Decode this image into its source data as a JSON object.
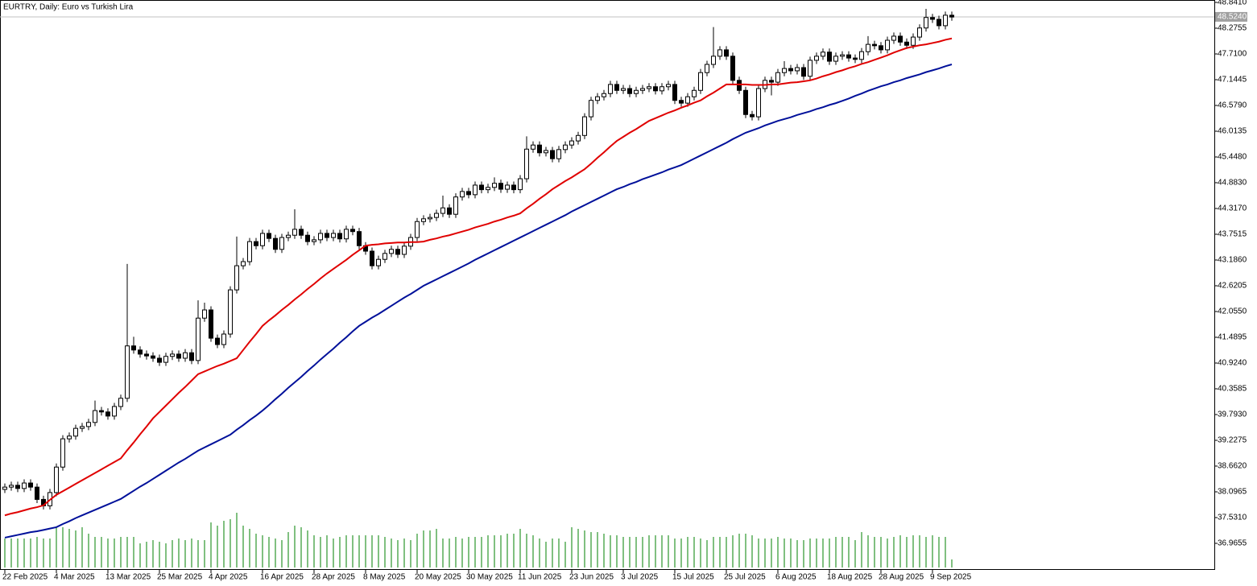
{
  "chart_data": {
    "type": "candlestick",
    "title": "EURTRY, Daily:  Euro vs Turkish Lira",
    "categories": [
      "22 Feb 2025",
      null,
      null,
      null,
      null,
      null,
      null,
      null,
      "4 Mar 2025",
      null,
      null,
      null,
      null,
      null,
      null,
      null,
      "13 Mar 2025",
      null,
      null,
      null,
      null,
      null,
      null,
      null,
      "25 Mar 2025",
      null,
      null,
      null,
      null,
      null,
      null,
      null,
      "4 Apr 2025",
      null,
      null,
      null,
      null,
      null,
      null,
      null,
      "16 Apr 2025",
      null,
      null,
      null,
      null,
      null,
      null,
      null,
      "28 Apr 2025",
      null,
      null,
      null,
      null,
      null,
      null,
      null,
      "8 May 2025",
      null,
      null,
      null,
      null,
      null,
      null,
      null,
      "20 May 2025",
      null,
      null,
      null,
      null,
      null,
      null,
      null,
      "30 May 2025",
      null,
      null,
      null,
      null,
      null,
      null,
      null,
      "11 Jun 2025",
      null,
      null,
      null,
      null,
      null,
      null,
      null,
      "23 Jun 2025",
      null,
      null,
      null,
      null,
      null,
      null,
      null,
      "3 Jul 2025",
      null,
      null,
      null,
      null,
      null,
      null,
      null,
      "15 Jul 2025",
      null,
      null,
      null,
      null,
      null,
      null,
      null,
      "25 Jul 2025",
      null,
      null,
      null,
      null,
      null,
      null,
      null,
      "6 Aug 2025",
      null,
      null,
      null,
      null,
      null,
      null,
      null,
      "18 Aug 2025",
      null,
      null,
      null,
      null,
      null,
      null,
      null,
      "28 Aug 2025",
      null,
      null,
      null,
      null,
      null,
      null,
      null,
      "9 Sep 2025",
      null,
      null,
      null
    ],
    "open": [
      38.15,
      38.2,
      38.24,
      38.17,
      38.29,
      38.2,
      37.93,
      37.79,
      38.08,
      38.64,
      39.26,
      39.32,
      39.49,
      39.53,
      39.62,
      39.88,
      39.85,
      39.76,
      39.97,
      40.15,
      41.3,
      41.21,
      41.12,
      41.08,
      41.03,
      40.94,
      41.07,
      41.12,
      41.03,
      41.15,
      40.98,
      41.91,
      42.09,
      41.47,
      41.33,
      41.56,
      42.53,
      43.06,
      43.15,
      43.59,
      43.5,
      43.77,
      43.66,
      43.42,
      43.68,
      43.73,
      43.86,
      43.73,
      43.59,
      43.63,
      43.77,
      43.68,
      43.77,
      43.65,
      43.86,
      43.81,
      43.5,
      43.38,
      43.06,
      43.2,
      43.33,
      43.42,
      43.31,
      43.49,
      43.68,
      44.03,
      44.09,
      44.12,
      44.21,
      44.33,
      44.19,
      44.57,
      44.69,
      44.62,
      44.83,
      44.73,
      44.78,
      44.87,
      44.74,
      44.83,
      44.73,
      44.97,
      45.62,
      45.71,
      45.54,
      45.59,
      45.41,
      45.61,
      45.71,
      45.8,
      45.92,
      46.33,
      46.69,
      46.77,
      46.84,
      47.04,
      46.91,
      46.95,
      46.84,
      46.91,
      46.95,
      46.99,
      46.9,
      46.99,
      47.04,
      46.69,
      46.63,
      46.77,
      46.91,
      47.3,
      47.48,
      47.66,
      47.8,
      47.66,
      47.13,
      46.91,
      46.38,
      46.33,
      46.95,
      47.13,
      47.09,
      47.3,
      47.39,
      47.34,
      47.41,
      47.22,
      47.57,
      47.66,
      47.75,
      47.55,
      47.66,
      47.69,
      47.62,
      47.59,
      47.76,
      47.92,
      47.89,
      47.8,
      48.01,
      48.1,
      47.97,
      47.9,
      48.08,
      48.28,
      48.51,
      48.47,
      48.33,
      48.56
    ],
    "high": [
      38.28,
      38.32,
      38.32,
      38.37,
      38.37,
      38.28,
      38.01,
      38.16,
      38.72,
      39.34,
      39.4,
      39.57,
      39.61,
      39.7,
      40.1,
      39.96,
      39.93,
      40.05,
      40.23,
      43.1,
      41.5,
      41.29,
      41.2,
      41.16,
      41.11,
      41.15,
      41.2,
      41.2,
      41.23,
      41.23,
      42.3,
      42.25,
      42.17,
      41.55,
      41.64,
      42.61,
      43.7,
      43.23,
      43.67,
      43.67,
      43.85,
      43.85,
      43.74,
      43.76,
      43.81,
      44.3,
      43.94,
      43.81,
      43.71,
      43.85,
      43.85,
      43.85,
      43.85,
      43.94,
      43.94,
      43.89,
      43.58,
      43.46,
      43.28,
      43.41,
      43.5,
      43.5,
      43.57,
      43.76,
      44.11,
      44.17,
      44.2,
      44.29,
      44.6,
      44.41,
      44.65,
      44.77,
      44.77,
      44.91,
      44.91,
      44.86,
      45.0,
      44.95,
      44.91,
      44.91,
      45.05,
      45.9,
      45.79,
      45.79,
      45.67,
      45.67,
      45.69,
      45.79,
      45.88,
      46.0,
      46.41,
      46.77,
      46.85,
      46.92,
      47.12,
      47.12,
      47.03,
      47.03,
      46.99,
      47.03,
      47.07,
      47.07,
      47.07,
      47.12,
      47.12,
      46.77,
      46.85,
      46.99,
      47.38,
      47.56,
      48.3,
      47.88,
      47.88,
      47.74,
      47.21,
      46.99,
      46.46,
      47.03,
      47.21,
      47.21,
      47.38,
      47.55,
      47.47,
      47.49,
      47.49,
      47.65,
      47.74,
      47.83,
      47.83,
      47.74,
      47.77,
      47.77,
      47.7,
      47.84,
      48.1,
      48.0,
      47.97,
      48.09,
      48.18,
      48.18,
      48.05,
      48.16,
      48.36,
      48.7,
      48.59,
      48.55,
      48.64,
      48.64
    ],
    "low": [
      38.07,
      38.12,
      38.09,
      38.09,
      38.12,
      37.85,
      37.71,
      37.71,
      38.0,
      38.56,
      39.18,
      39.24,
      39.41,
      39.45,
      39.54,
      39.77,
      39.68,
      39.68,
      39.89,
      40.07,
      41.13,
      41.04,
      41.0,
      40.95,
      40.86,
      40.86,
      40.99,
      40.95,
      40.95,
      40.9,
      40.9,
      41.83,
      41.39,
      41.25,
      41.25,
      41.48,
      42.45,
      42.98,
      43.07,
      43.42,
      43.42,
      43.58,
      43.34,
      43.34,
      43.6,
      43.65,
      43.65,
      43.51,
      43.51,
      43.55,
      43.6,
      43.6,
      43.57,
      43.57,
      43.73,
      43.42,
      43.3,
      42.98,
      42.98,
      43.12,
      43.25,
      43.23,
      43.23,
      43.41,
      43.6,
      43.95,
      44.01,
      44.04,
      44.13,
      44.11,
      44.11,
      44.49,
      44.54,
      44.54,
      44.65,
      44.65,
      44.7,
      44.66,
      44.66,
      44.65,
      44.65,
      44.89,
      45.54,
      45.46,
      45.46,
      45.33,
      45.33,
      45.53,
      45.63,
      45.72,
      45.84,
      46.25,
      46.61,
      46.69,
      46.76,
      46.83,
      46.83,
      46.76,
      46.76,
      46.83,
      46.87,
      46.82,
      46.82,
      46.91,
      46.61,
      46.55,
      46.55,
      46.69,
      46.83,
      47.22,
      47.4,
      47.58,
      47.58,
      47.05,
      46.83,
      46.3,
      46.25,
      46.25,
      46.87,
      46.8,
      47.01,
      47.22,
      47.26,
      47.26,
      47.14,
      47.14,
      47.49,
      47.58,
      47.47,
      47.47,
      47.58,
      47.54,
      47.51,
      47.51,
      47.68,
      47.81,
      47.72,
      47.72,
      47.93,
      47.89,
      47.82,
      47.82,
      48.0,
      48.2,
      48.39,
      48.25,
      48.25,
      48.44
    ],
    "close": [
      38.2,
      38.24,
      38.17,
      38.29,
      38.2,
      37.93,
      37.79,
      38.08,
      38.64,
      39.26,
      39.32,
      39.49,
      39.53,
      39.62,
      39.88,
      39.85,
      39.76,
      39.97,
      40.15,
      41.3,
      41.21,
      41.12,
      41.08,
      41.03,
      40.94,
      41.07,
      41.12,
      41.03,
      41.15,
      40.98,
      41.91,
      42.09,
      41.47,
      41.33,
      41.56,
      42.53,
      43.06,
      43.15,
      43.59,
      43.5,
      43.77,
      43.66,
      43.42,
      43.68,
      43.73,
      43.86,
      43.73,
      43.59,
      43.63,
      43.77,
      43.68,
      43.77,
      43.65,
      43.86,
      43.81,
      43.5,
      43.38,
      43.06,
      43.2,
      43.33,
      43.42,
      43.31,
      43.49,
      43.68,
      44.03,
      44.09,
      44.12,
      44.21,
      44.33,
      44.19,
      44.57,
      44.69,
      44.62,
      44.83,
      44.73,
      44.78,
      44.87,
      44.74,
      44.83,
      44.73,
      44.97,
      45.62,
      45.71,
      45.54,
      45.59,
      45.41,
      45.61,
      45.71,
      45.8,
      45.92,
      46.33,
      46.69,
      46.77,
      46.84,
      47.04,
      46.91,
      46.95,
      46.84,
      46.91,
      46.95,
      46.99,
      46.9,
      46.99,
      47.04,
      46.69,
      46.63,
      46.77,
      46.91,
      47.3,
      47.48,
      47.66,
      47.8,
      47.66,
      47.13,
      46.91,
      46.38,
      46.33,
      46.95,
      47.13,
      47.09,
      47.3,
      47.39,
      47.34,
      47.41,
      47.22,
      47.57,
      47.66,
      47.75,
      47.55,
      47.66,
      47.69,
      47.62,
      47.59,
      47.76,
      47.92,
      47.89,
      47.8,
      48.01,
      48.1,
      47.97,
      47.9,
      48.08,
      48.28,
      48.51,
      48.47,
      48.33,
      48.56,
      48.52
    ],
    "series": [
      {
        "color": "#e00000",
        "values": [
          37.58,
          37.62,
          37.65,
          37.69,
          37.73,
          37.76,
          37.8,
          37.92,
          38.03,
          38.11,
          38.19,
          38.27,
          38.35,
          38.43,
          38.51,
          38.59,
          38.67,
          38.75,
          38.83,
          39.01,
          39.18,
          39.36,
          39.53,
          39.71,
          39.85,
          39.99,
          40.13,
          40.27,
          40.4,
          40.54,
          40.68,
          40.74,
          40.8,
          40.86,
          40.91,
          40.97,
          41.03,
          41.21,
          41.39,
          41.56,
          41.74,
          41.86,
          41.97,
          42.09,
          42.2,
          42.32,
          42.43,
          42.55,
          42.66,
          42.78,
          42.89,
          42.99,
          43.09,
          43.19,
          43.3,
          43.4,
          43.5,
          43.52,
          43.53,
          43.55,
          43.56,
          43.57,
          43.57,
          43.58,
          43.58,
          43.59,
          43.63,
          43.66,
          43.7,
          43.73,
          43.77,
          43.81,
          43.85,
          43.9,
          43.94,
          43.98,
          44.03,
          44.07,
          44.12,
          44.16,
          44.21,
          44.32,
          44.42,
          44.53,
          44.63,
          44.74,
          44.83,
          44.92,
          45.0,
          45.09,
          45.18,
          45.3,
          45.43,
          45.55,
          45.68,
          45.8,
          45.89,
          45.98,
          46.06,
          46.15,
          46.24,
          46.3,
          46.36,
          46.42,
          46.47,
          46.53,
          46.58,
          46.64,
          46.69,
          46.78,
          46.86,
          46.95,
          47.04,
          47.04,
          47.04,
          47.04,
          47.03,
          47.03,
          47.03,
          47.04,
          47.04,
          47.06,
          47.08,
          47.09,
          47.11,
          47.13,
          47.17,
          47.22,
          47.26,
          47.31,
          47.35,
          47.4,
          47.44,
          47.49,
          47.53,
          47.58,
          47.63,
          47.68,
          47.74,
          47.79,
          47.84,
          47.87,
          47.9,
          47.92,
          47.95,
          47.98,
          48.02,
          48.05
        ]
      },
      {
        "color": "#00109a",
        "values": [
          37.09,
          37.12,
          37.15,
          37.18,
          37.21,
          37.23,
          37.26,
          37.29,
          37.32,
          37.39,
          37.45,
          37.52,
          37.58,
          37.64,
          37.7,
          37.76,
          37.82,
          37.88,
          37.94,
          38.03,
          38.12,
          38.21,
          38.29,
          38.38,
          38.47,
          38.56,
          38.65,
          38.74,
          38.82,
          38.91,
          39.0,
          39.07,
          39.14,
          39.21,
          39.28,
          39.35,
          39.46,
          39.56,
          39.67,
          39.77,
          39.88,
          40.0,
          40.13,
          40.25,
          40.38,
          40.5,
          40.62,
          40.75,
          40.87,
          41.0,
          41.12,
          41.24,
          41.37,
          41.49,
          41.62,
          41.74,
          41.83,
          41.92,
          42.0,
          42.09,
          42.18,
          42.27,
          42.36,
          42.44,
          42.53,
          42.62,
          42.69,
          42.76,
          42.83,
          42.9,
          42.97,
          43.04,
          43.11,
          43.19,
          43.26,
          43.33,
          43.4,
          43.47,
          43.54,
          43.61,
          43.68,
          43.75,
          43.82,
          43.89,
          43.96,
          44.03,
          44.1,
          44.17,
          44.25,
          44.32,
          44.39,
          44.46,
          44.53,
          44.6,
          44.67,
          44.74,
          44.79,
          44.85,
          44.9,
          44.96,
          45.01,
          45.06,
          45.11,
          45.17,
          45.22,
          45.27,
          45.34,
          45.41,
          45.48,
          45.55,
          45.62,
          45.69,
          45.76,
          45.84,
          45.91,
          45.98,
          46.03,
          46.08,
          46.14,
          46.19,
          46.24,
          46.28,
          46.32,
          46.37,
          46.41,
          46.45,
          46.5,
          46.54,
          46.59,
          46.63,
          46.68,
          46.73,
          46.79,
          46.84,
          46.9,
          46.95,
          47.0,
          47.04,
          47.09,
          47.13,
          47.18,
          47.22,
          47.26,
          47.31,
          47.35,
          47.39,
          47.44,
          47.48
        ]
      }
    ],
    "volume": {
      "color": "#008000",
      "values": [
        36,
        36,
        36,
        36,
        36,
        38,
        36,
        36,
        50,
        50,
        48,
        46,
        50,
        42,
        38,
        38,
        36,
        36,
        38,
        38,
        38,
        30,
        32,
        34,
        32,
        30,
        34,
        36,
        34,
        36,
        34,
        34,
        56,
        52,
        58,
        60,
        68,
        52,
        48,
        42,
        40,
        38,
        36,
        34,
        44,
        52,
        50,
        46,
        40,
        38,
        40,
        36,
        38,
        40,
        40,
        40,
        40,
        40,
        40,
        38,
        36,
        34,
        36,
        34,
        42,
        46,
        46,
        48,
        36,
        36,
        38,
        36,
        38,
        38,
        38,
        40,
        40,
        40,
        42,
        42,
        48,
        42,
        40,
        36,
        32,
        36,
        36,
        32,
        50,
        48,
        46,
        44,
        44,
        42,
        40,
        40,
        38,
        38,
        38,
        38,
        40,
        40,
        40,
        40,
        36,
        36,
        38,
        38,
        36,
        34,
        38,
        38,
        38,
        40,
        42,
        42,
        40,
        36,
        36,
        36,
        38,
        36,
        36,
        34,
        34,
        36,
        36,
        36,
        36,
        38,
        38,
        38,
        34,
        44,
        40,
        38,
        38,
        36,
        38,
        40,
        38,
        40,
        40,
        38,
        40,
        38,
        38,
        10
      ]
    },
    "last_price": {
      "value": 48.524,
      "label": "48.5240"
    },
    "ylim": [
      36.9655,
      48.841
    ],
    "yticks": [
      {
        "value": 48.841,
        "label": "48.8410"
      },
      {
        "value": 48.2755,
        "label": "48.2755"
      },
      {
        "value": 47.71,
        "label": "47.7100"
      },
      {
        "value": 47.1445,
        "label": "47.1445"
      },
      {
        "value": 46.579,
        "label": "46.5790"
      },
      {
        "value": 46.0135,
        "label": "46.0135"
      },
      {
        "value": 45.448,
        "label": "45.4480"
      },
      {
        "value": 44.883,
        "label": "44.8830"
      },
      {
        "value": 44.317,
        "label": "44.3170"
      },
      {
        "value": 43.7515,
        "label": "43.7515"
      },
      {
        "value": 43.186,
        "label": "43.1860"
      },
      {
        "value": 42.6205,
        "label": "42.6205"
      },
      {
        "value": 42.055,
        "label": "42.0550"
      },
      {
        "value": 41.4895,
        "label": "41.4895"
      },
      {
        "value": 40.924,
        "label": "40.9240"
      },
      {
        "value": 40.3585,
        "label": "40.3585"
      },
      {
        "value": 39.793,
        "label": "39.7930"
      },
      {
        "value": 39.2275,
        "label": "39.2275"
      },
      {
        "value": 38.662,
        "label": "38.6620"
      },
      {
        "value": 38.0965,
        "label": "38.0965"
      },
      {
        "value": 37.531,
        "label": "37.5310"
      },
      {
        "value": 36.9655,
        "label": "36.9655"
      }
    ],
    "grid": false
  }
}
